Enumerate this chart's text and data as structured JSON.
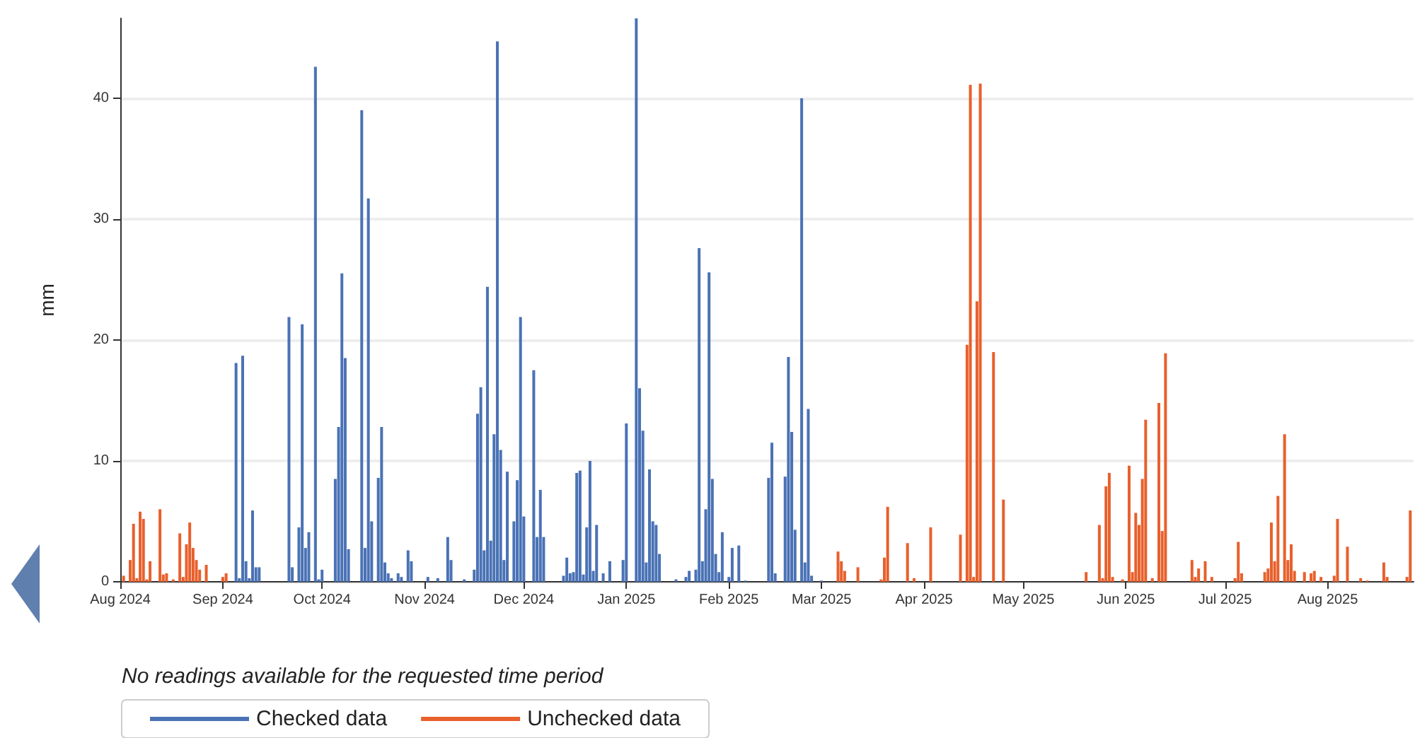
{
  "chart_data": {
    "type": "bar",
    "ylabel": "mm",
    "annotations": [
      "No readings available for the requested time period"
    ],
    "xlim": [
      "2024-08-01",
      "2025-08-27"
    ],
    "xticks": [
      {
        "value": "2024-08-01",
        "label": "Aug 2024"
      },
      {
        "value": "2024-09-01",
        "label": "Sep 2024"
      },
      {
        "value": "2024-10-01",
        "label": "Oct 2024"
      },
      {
        "value": "2024-11-01",
        "label": "Nov 2024"
      },
      {
        "value": "2024-12-01",
        "label": "Dec 2024"
      },
      {
        "value": "2025-01-01",
        "label": "Jan 2025"
      },
      {
        "value": "2025-02-01",
        "label": "Feb 2025"
      },
      {
        "value": "2025-03-01",
        "label": "Mar 2025"
      },
      {
        "value": "2025-04-01",
        "label": "Apr 2025"
      },
      {
        "value": "2025-05-01",
        "label": "May 2025"
      },
      {
        "value": "2025-06-01",
        "label": "Jun 2025"
      },
      {
        "value": "2025-07-01",
        "label": "Jul 2025"
      },
      {
        "value": "2025-08-01",
        "label": "Aug 2025"
      }
    ],
    "ylim": [
      0,
      46.6
    ],
    "yticks": [
      0,
      10,
      20,
      30,
      40
    ],
    "grid": "y",
    "legend": "bottom left",
    "series": [
      {
        "name": "Checked data",
        "color": "#4a72b5",
        "x": [
          "2024-09-05",
          "2024-09-06",
          "2024-09-07",
          "2024-09-08",
          "2024-09-09",
          "2024-09-10",
          "2024-09-11",
          "2024-09-12",
          "2024-09-21",
          "2024-09-22",
          "2024-09-24",
          "2024-09-25",
          "2024-09-26",
          "2024-09-27",
          "2024-09-29",
          "2024-09-30",
          "2024-10-01",
          "2024-10-05",
          "2024-10-06",
          "2024-10-07",
          "2024-10-08",
          "2024-10-09",
          "2024-10-13",
          "2024-10-14",
          "2024-10-15",
          "2024-10-16",
          "2024-10-18",
          "2024-10-19",
          "2024-10-20",
          "2024-10-21",
          "2024-10-22",
          "2024-10-24",
          "2024-10-25",
          "2024-10-27",
          "2024-10-28",
          "2024-11-02",
          "2024-11-05",
          "2024-11-08",
          "2024-11-09",
          "2024-11-13",
          "2024-11-16",
          "2024-11-17",
          "2024-11-18",
          "2024-11-19",
          "2024-11-20",
          "2024-11-21",
          "2024-11-22",
          "2024-11-23",
          "2024-11-24",
          "2024-11-25",
          "2024-11-26",
          "2024-11-28",
          "2024-11-29",
          "2024-11-30",
          "2024-12-01",
          "2024-12-04",
          "2024-12-05",
          "2024-12-06",
          "2024-12-07",
          "2024-12-13",
          "2024-12-14",
          "2024-12-15",
          "2024-12-16",
          "2024-12-17",
          "2024-12-18",
          "2024-12-19",
          "2024-12-20",
          "2024-12-21",
          "2024-12-22",
          "2024-12-23",
          "2024-12-25",
          "2024-12-27",
          "2024-12-31",
          "2025-01-01",
          "2025-01-04",
          "2025-01-05",
          "2025-01-06",
          "2025-01-07",
          "2025-01-08",
          "2025-01-09",
          "2025-01-10",
          "2025-01-11",
          "2025-01-16",
          "2025-01-19",
          "2025-01-20",
          "2025-01-22",
          "2025-01-23",
          "2025-01-24",
          "2025-01-25",
          "2025-01-26",
          "2025-01-27",
          "2025-01-28",
          "2025-01-29",
          "2025-01-30",
          "2025-02-01",
          "2025-02-02",
          "2025-02-04",
          "2025-02-06",
          "2025-02-13",
          "2025-02-14",
          "2025-02-15",
          "2025-02-18",
          "2025-02-19",
          "2025-02-20",
          "2025-02-21",
          "2025-02-23",
          "2025-02-24",
          "2025-02-25",
          "2025-02-26",
          "2025-03-01"
        ],
        "values": [
          18.1,
          0.3,
          18.7,
          1.7,
          0.3,
          5.9,
          1.2,
          1.2,
          21.9,
          1.2,
          4.5,
          21.3,
          2.8,
          4.1,
          42.6,
          0.2,
          1.0,
          8.5,
          12.8,
          25.5,
          18.5,
          2.7,
          39.0,
          2.8,
          31.7,
          5.0,
          8.6,
          12.8,
          1.6,
          0.7,
          0.3,
          0.7,
          0.4,
          2.6,
          1.7,
          0.4,
          0.3,
          3.7,
          1.8,
          0.2,
          1.0,
          13.9,
          16.1,
          2.6,
          24.4,
          3.4,
          12.2,
          44.7,
          10.9,
          1.8,
          9.1,
          5.0,
          8.4,
          21.9,
          5.4,
          17.5,
          3.7,
          7.6,
          3.7,
          0.5,
          2.0,
          0.7,
          0.8,
          9.0,
          9.2,
          0.6,
          4.5,
          10.0,
          0.9,
          4.7,
          0.7,
          1.7,
          1.8,
          13.1,
          46.6,
          16.0,
          12.5,
          1.6,
          9.3,
          5.0,
          4.7,
          2.3,
          0.2,
          0.4,
          0.9,
          1.0,
          27.6,
          1.7,
          6.0,
          25.6,
          8.5,
          2.3,
          0.8,
          4.1,
          0.4,
          2.8,
          3.0,
          0.1,
          8.6,
          11.5,
          0.7,
          8.7,
          18.6,
          12.4,
          4.3,
          40.0,
          1.6,
          14.3,
          0.5,
          0.1
        ]
      },
      {
        "name": "Unchecked data",
        "color": "#e8602c",
        "x": [
          "2024-08-02",
          "2024-08-04",
          "2024-08-05",
          "2024-08-06",
          "2024-08-07",
          "2024-08-08",
          "2024-08-09",
          "2024-08-10",
          "2024-08-13",
          "2024-08-14",
          "2024-08-15",
          "2024-08-17",
          "2024-08-19",
          "2024-08-20",
          "2024-08-21",
          "2024-08-22",
          "2024-08-23",
          "2024-08-24",
          "2024-08-25",
          "2024-08-27",
          "2024-09-01",
          "2024-09-02",
          "2025-03-06",
          "2025-03-07",
          "2025-03-08",
          "2025-03-12",
          "2025-03-19",
          "2025-03-20",
          "2025-03-21",
          "2025-03-27",
          "2025-03-29",
          "2025-04-03",
          "2025-04-12",
          "2025-04-14",
          "2025-04-15",
          "2025-04-16",
          "2025-04-17",
          "2025-04-18",
          "2025-04-22",
          "2025-04-25",
          "2025-05-20",
          "2025-05-24",
          "2025-05-25",
          "2025-05-26",
          "2025-05-27",
          "2025-05-28",
          "2025-05-31",
          "2025-06-02",
          "2025-06-03",
          "2025-06-04",
          "2025-06-05",
          "2025-06-06",
          "2025-06-07",
          "2025-06-09",
          "2025-06-11",
          "2025-06-12",
          "2025-06-13",
          "2025-06-21",
          "2025-06-22",
          "2025-06-23",
          "2025-06-25",
          "2025-06-27",
          "2025-07-04",
          "2025-07-05",
          "2025-07-06",
          "2025-07-13",
          "2025-07-14",
          "2025-07-15",
          "2025-07-16",
          "2025-07-17",
          "2025-07-19",
          "2025-07-20",
          "2025-07-21",
          "2025-07-22",
          "2025-07-25",
          "2025-07-27",
          "2025-07-28",
          "2025-07-30",
          "2025-08-03",
          "2025-08-04",
          "2025-08-07",
          "2025-08-11",
          "2025-08-13",
          "2025-08-18",
          "2025-08-19",
          "2025-08-25",
          "2025-08-26"
        ],
        "values": [
          0.5,
          1.8,
          4.8,
          0.3,
          5.8,
          5.2,
          0.2,
          1.7,
          6.0,
          0.6,
          0.7,
          0.2,
          4.0,
          0.4,
          3.1,
          4.9,
          2.8,
          1.8,
          1.0,
          1.4,
          0.4,
          0.7,
          2.5,
          1.7,
          0.9,
          1.2,
          0.2,
          2.0,
          6.2,
          3.2,
          0.3,
          4.5,
          3.9,
          19.6,
          41.1,
          0.4,
          23.2,
          41.2,
          19.0,
          6.8,
          0.8,
          4.7,
          0.3,
          7.9,
          9.0,
          0.4,
          0.2,
          9.6,
          0.8,
          5.7,
          4.7,
          8.5,
          13.4,
          0.3,
          14.8,
          4.2,
          18.9,
          1.8,
          0.4,
          1.1,
          1.7,
          0.4,
          0.3,
          3.3,
          0.7,
          0.8,
          1.1,
          4.9,
          1.7,
          7.1,
          12.2,
          1.8,
          3.1,
          0.9,
          0.8,
          0.7,
          0.9,
          0.4,
          0.5,
          5.2,
          2.9,
          0.3,
          0.1,
          1.6,
          0.4,
          0.4,
          5.9
        ]
      }
    ]
  }
}
